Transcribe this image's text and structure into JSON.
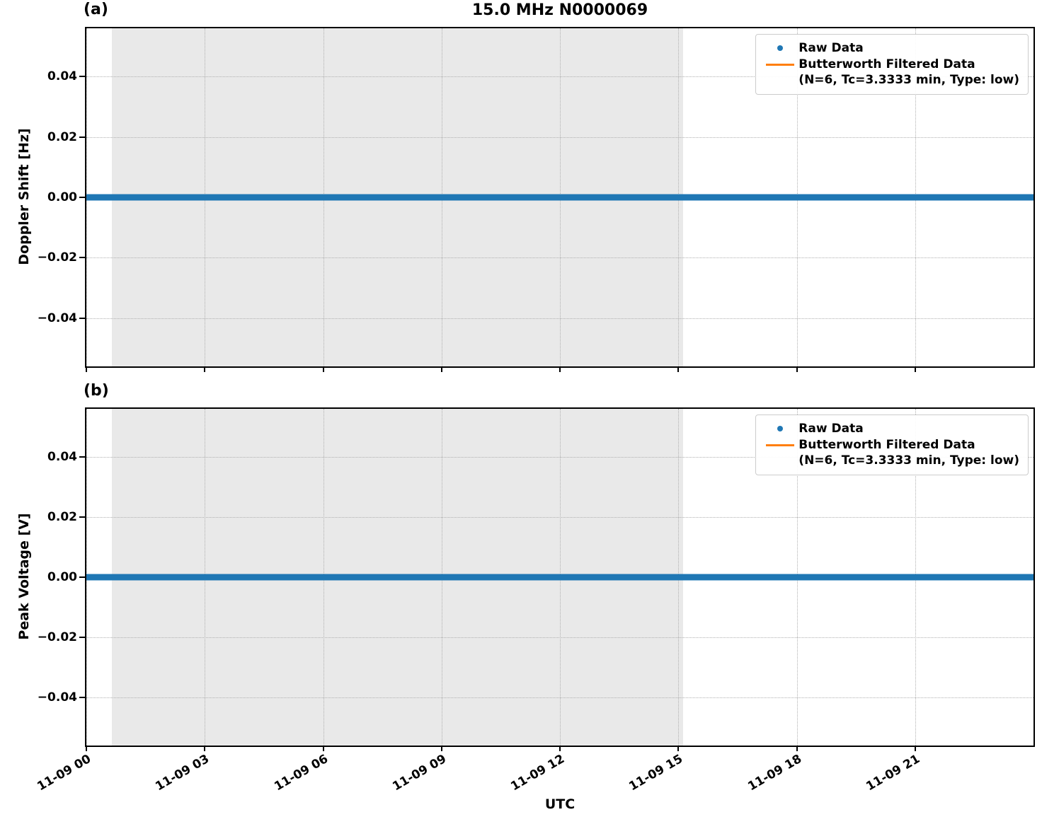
{
  "figure": {
    "title": "15.0 MHz N0000069",
    "xlabel": "UTC",
    "panel_a_label": "(a)",
    "panel_b_label": "(b)"
  },
  "legend": {
    "raw_label": "Raw Data",
    "filtered_label": "Butterworth Filtered Data",
    "filtered_params": "(N=6, Tc=3.3333 min, Type: low)"
  },
  "colors": {
    "raw_data": "#1f77b4",
    "filtered_data": "#ff7f0e",
    "shaded_region": "#e9e9e9",
    "grid": "#b0b0b0",
    "axes": "#000000"
  },
  "chart_data": [
    {
      "type": "scatter",
      "panel": "(a)",
      "title": "15.0 MHz N0000069",
      "xlabel": "UTC",
      "ylabel": "Doppler Shift [Hz]",
      "grid": "dotted",
      "legend_position": "upper right",
      "x_axis": {
        "unit": "UTC datetime (month-day hour)",
        "range_hours": [
          0,
          24
        ],
        "tick_hours": [
          0,
          3,
          6,
          9,
          12,
          15,
          18,
          21
        ],
        "tick_labels": [
          "11-09 00",
          "11-09 03",
          "11-09 06",
          "11-09 09",
          "11-09 12",
          "11-09 15",
          "11-09 18",
          "11-09 21"
        ]
      },
      "y_axis": {
        "lim": [
          -0.056,
          0.056
        ],
        "ticks": [
          0.04,
          0.02,
          0.0,
          -0.02,
          -0.04
        ],
        "tick_labels": [
          "0.04",
          "0.02",
          "0.00",
          "−0.02",
          "−0.04"
        ]
      },
      "shaded_region": {
        "start_hour": 0.65,
        "end_hour": 15.12,
        "description": "gray band from ~11-09 00:40 to ~11-09 15:07"
      },
      "series": [
        {
          "name": "Raw Data",
          "style": "dot markers",
          "color": "#1f77b4",
          "y_constant": 0.0,
          "x_extent_hours": [
            0,
            24
          ]
        },
        {
          "name": "Butterworth Filtered Data (N=6, Tc=3.3333 min, Type: low)",
          "style": "solid line",
          "color": "#ff7f0e",
          "y_constant": 0.0,
          "note": "hidden beneath raw data markers"
        }
      ]
    },
    {
      "type": "scatter",
      "panel": "(b)",
      "title": "",
      "xlabel": "UTC",
      "ylabel": "Peak Voltage [V]",
      "grid": "dotted",
      "legend_position": "upper right",
      "x_axis": {
        "unit": "UTC datetime (month-day hour)",
        "range_hours": [
          0,
          24
        ],
        "tick_hours": [
          0,
          3,
          6,
          9,
          12,
          15,
          18,
          21
        ],
        "tick_labels": [
          "11-09 00",
          "11-09 03",
          "11-09 06",
          "11-09 09",
          "11-09 12",
          "11-09 15",
          "11-09 18",
          "11-09 21"
        ]
      },
      "y_axis": {
        "lim": [
          -0.056,
          0.056
        ],
        "ticks": [
          0.04,
          0.02,
          0.0,
          -0.02,
          -0.04
        ],
        "tick_labels": [
          "0.04",
          "0.02",
          "0.00",
          "−0.02",
          "−0.04"
        ]
      },
      "shaded_region": {
        "start_hour": 0.65,
        "end_hour": 15.12,
        "description": "gray band from ~11-09 00:40 to ~11-09 15:07"
      },
      "series": [
        {
          "name": "Raw Data",
          "style": "dot markers",
          "color": "#1f77b4",
          "y_constant": 0.0,
          "x_extent_hours": [
            0,
            24
          ]
        },
        {
          "name": "Butterworth Filtered Data (N=6, Tc=3.3333 min, Type: low)",
          "style": "solid line",
          "color": "#ff7f0e",
          "y_constant": 0.0,
          "note": "hidden beneath raw data markers"
        }
      ]
    }
  ]
}
